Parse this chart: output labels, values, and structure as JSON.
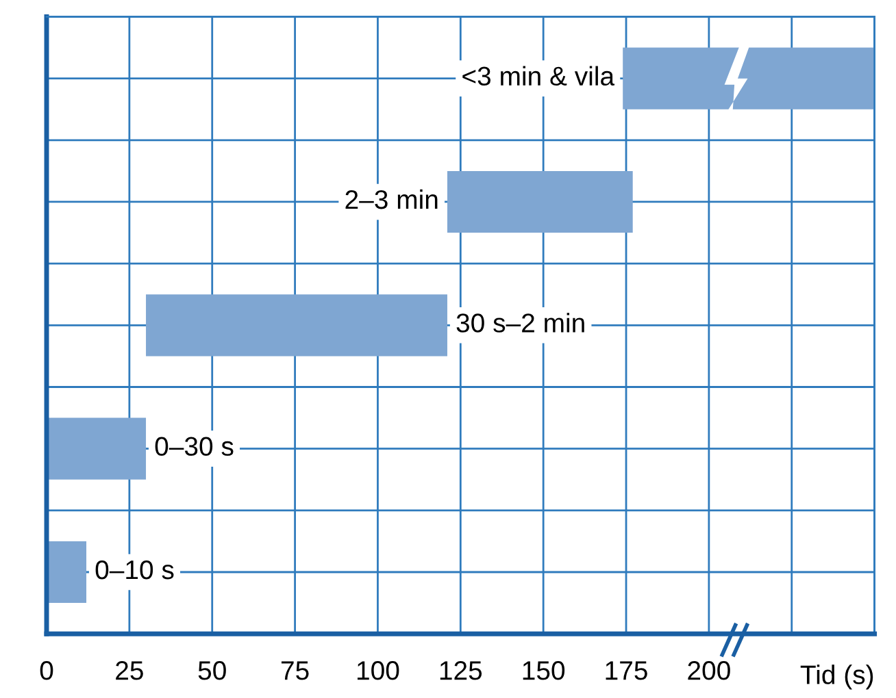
{
  "chart_data": {
    "type": "bar",
    "orientation": "horizontal",
    "xlabel": "Tid (s)",
    "categories": [
      "<3 min & vila",
      "2–3 min",
      "30 s–2 min",
      "0–30 s",
      "0–10 s"
    ],
    "base": [
      174,
      121,
      30,
      0,
      0
    ],
    "values": [
      76,
      56,
      91,
      30,
      12
    ],
    "color": "#7fa6d2",
    "xlim": [
      0,
      250
    ],
    "xticks": [
      0,
      25,
      50,
      75,
      100,
      125,
      150,
      175,
      200
    ],
    "grid": true
  }
}
